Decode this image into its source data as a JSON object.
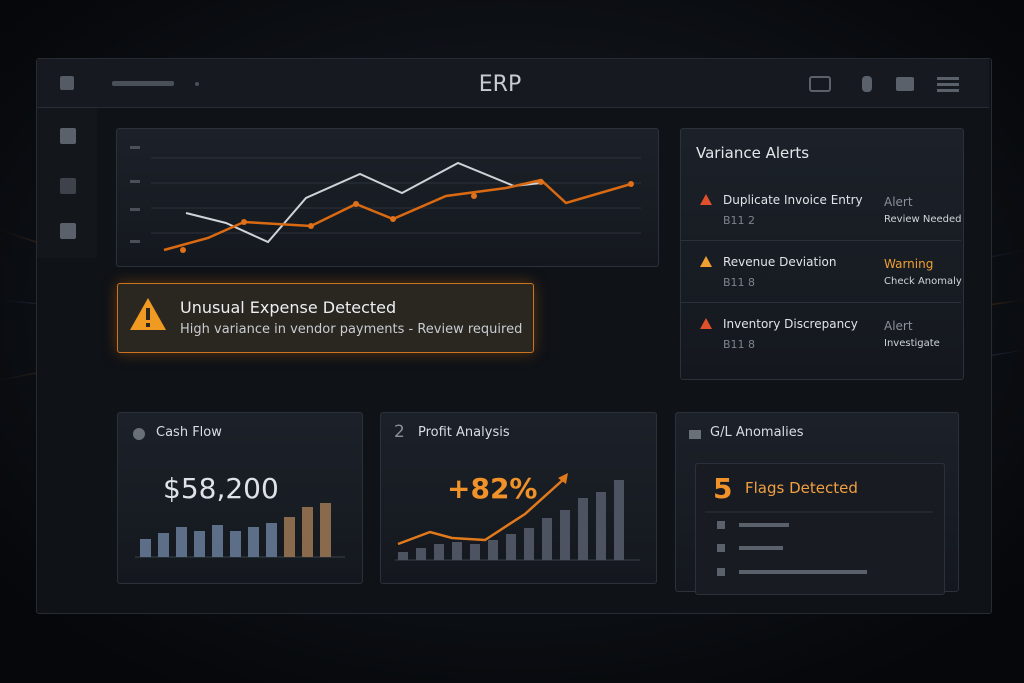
{
  "header": {
    "title": "ERP"
  },
  "alert_banner": {
    "title": "Unusual Expense Detected",
    "message": "High variance in vendor payments - Review required"
  },
  "variance_alerts": {
    "title": "Variance Alerts",
    "items": [
      {
        "label": "Duplicate Invoice Entry",
        "code": "B11 2",
        "status": "Alert",
        "action": "Review Needed"
      },
      {
        "label": "Revenue Deviation",
        "code": "B11 8",
        "status": "Warning",
        "action": "Check Anomaly"
      },
      {
        "label": "Inventory Discrepancy",
        "code": "B11 8",
        "status": "Alert",
        "action": "Investigate"
      }
    ]
  },
  "cards": {
    "cash_flow": {
      "title": "Cash Flow",
      "value": "$58,200"
    },
    "profit_analysis": {
      "icon": "2",
      "title": "Profit Analysis",
      "value": "+82%"
    },
    "gl_anomalies": {
      "title": "G/L Anomalies",
      "count": "5",
      "label": "Flags Detected"
    }
  }
}
